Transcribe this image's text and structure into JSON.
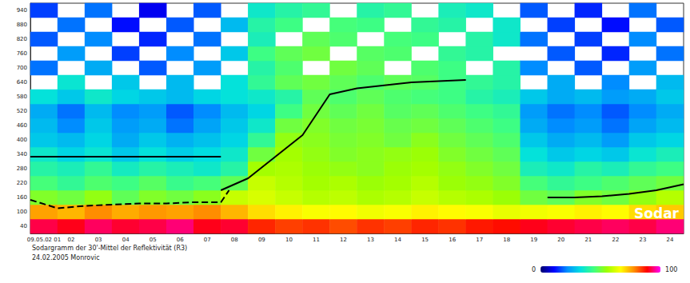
{
  "chart_data": {
    "type": "heatmap",
    "title": "Sodargramm der 30'-Mittel der Reflektivität (R3)",
    "subtitle": "24.02.2005 Monrovic",
    "annotations": [
      "Sodar"
    ],
    "categories": [
      "09.05.02 01",
      "02",
      "03",
      "04",
      "05",
      "06",
      "07",
      "08",
      "09",
      "10",
      "11",
      "12",
      "13",
      "14",
      "15",
      "16",
      "17",
      "18",
      "19",
      "20",
      "21",
      "22",
      "23",
      "24"
    ],
    "heights": [
      40,
      100,
      160,
      220,
      280,
      340,
      400,
      460,
      520,
      580,
      640,
      700,
      760,
      820,
      880,
      940
    ],
    "cells": [
      [
        92,
        90,
        93,
        91,
        92,
        94,
        90,
        91,
        86,
        84,
        85,
        83,
        85,
        84,
        86,
        85,
        87,
        88,
        90,
        91,
        92,
        93,
        92,
        94
      ],
      [
        76,
        74,
        78,
        75,
        77,
        76,
        78,
        74,
        70,
        68,
        66,
        67,
        65,
        66,
        68,
        67,
        66,
        64,
        65,
        66,
        68,
        67,
        70,
        72
      ],
      [
        52,
        50,
        54,
        48,
        52,
        50,
        53,
        60,
        62,
        60,
        58,
        59,
        57,
        58,
        60,
        58,
        57,
        55,
        50,
        48,
        52,
        50,
        54,
        58
      ],
      [
        45,
        42,
        46,
        44,
        47,
        43,
        45,
        48,
        60,
        58,
        56,
        57,
        55,
        56,
        58,
        55,
        54,
        52,
        45,
        42,
        44,
        46,
        48,
        50
      ],
      [
        40,
        38,
        42,
        37,
        40,
        38,
        36,
        40,
        56,
        57,
        55,
        54,
        53,
        55,
        56,
        54,
        52,
        50,
        38,
        36,
        40,
        38,
        42,
        44
      ],
      [
        36,
        32,
        35,
        30,
        34,
        31,
        33,
        36,
        50,
        56,
        54,
        52,
        53,
        54,
        55,
        52,
        50,
        48,
        34,
        30,
        32,
        30,
        35,
        38
      ],
      [
        30,
        28,
        32,
        26,
        30,
        27,
        29,
        32,
        42,
        54,
        53,
        51,
        52,
        50,
        53,
        50,
        48,
        46,
        30,
        26,
        28,
        24,
        30,
        32
      ],
      [
        28,
        22,
        30,
        24,
        26,
        20,
        25,
        30,
        36,
        50,
        52,
        50,
        51,
        49,
        50,
        48,
        46,
        44,
        26,
        22,
        24,
        20,
        25,
        28
      ],
      [
        26,
        20,
        28,
        22,
        24,
        18,
        22,
        28,
        32,
        44,
        50,
        48,
        50,
        47,
        48,
        46,
        44,
        42,
        24,
        20,
        22,
        18,
        22,
        26
      ],
      [
        34,
        30,
        36,
        32,
        30,
        28,
        32,
        34,
        36,
        40,
        48,
        46,
        48,
        46,
        45,
        44,
        40,
        38,
        30,
        26,
        28,
        24,
        26,
        30
      ],
      [
        null,
        35,
        null,
        30,
        null,
        28,
        null,
        34,
        42,
        48,
        50,
        48,
        46,
        48,
        47,
        44,
        42,
        40,
        null,
        26,
        null,
        22,
        null,
        28
      ],
      [
        20,
        null,
        26,
        null,
        18,
        null,
        24,
        null,
        40,
        46,
        null,
        50,
        48,
        null,
        46,
        44,
        null,
        40,
        22,
        null,
        18,
        null,
        24,
        null
      ],
      [
        null,
        24,
        null,
        16,
        null,
        22,
        null,
        30,
        44,
        48,
        50,
        null,
        47,
        46,
        null,
        42,
        40,
        null,
        null,
        18,
        null,
        14,
        null,
        20
      ],
      [
        18,
        null,
        22,
        null,
        14,
        null,
        20,
        null,
        38,
        null,
        48,
        46,
        null,
        45,
        44,
        null,
        40,
        36,
        20,
        null,
        16,
        null,
        22,
        null
      ],
      [
        null,
        20,
        null,
        12,
        null,
        18,
        null,
        28,
        40,
        44,
        null,
        45,
        44,
        null,
        42,
        40,
        null,
        36,
        null,
        16,
        null,
        12,
        null,
        18
      ],
      [
        16,
        null,
        20,
        null,
        10,
        null,
        18,
        null,
        36,
        40,
        42,
        null,
        40,
        42,
        null,
        38,
        36,
        null,
        18,
        null,
        14,
        null,
        20,
        null
      ]
    ],
    "colorbar": {
      "range": [
        0,
        100
      ],
      "ticks": [
        0,
        100
      ]
    },
    "xlim": [
      0,
      24
    ],
    "ylim": [
      10,
      970
    ],
    "series": [
      {
        "type": "line",
        "line_style": "solid",
        "color": "#000000",
        "x": [
          0,
          7
        ],
        "values": [
          330,
          330
        ]
      },
      {
        "type": "line",
        "line_style": "solid",
        "color": "#000000",
        "x": [
          7,
          8,
          9,
          10,
          11,
          12,
          14,
          16
        ],
        "values": [
          190,
          240,
          330,
          420,
          590,
          615,
          640,
          650
        ]
      },
      {
        "type": "line",
        "line_style": "dashed",
        "color": "#000000",
        "x": [
          0,
          1,
          2,
          3,
          4,
          5,
          6,
          7,
          7.3
        ],
        "values": [
          150,
          115,
          125,
          130,
          135,
          135,
          140,
          140,
          190
        ]
      },
      {
        "type": "line",
        "line_style": "solid",
        "color": "#000000",
        "x": [
          19,
          20,
          21,
          22,
          23,
          24
        ],
        "values": [
          160,
          160,
          165,
          175,
          190,
          215
        ]
      }
    ],
    "grid": false
  }
}
